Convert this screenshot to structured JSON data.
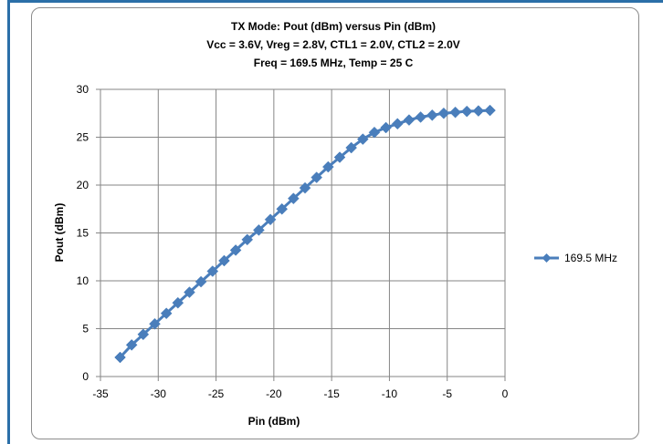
{
  "chart_data": {
    "type": "line",
    "title_lines": [
      "TX Mode:  Pout (dBm) versus Pin (dBm)",
      "Vcc = 3.6V,  Vreg = 2.8V, CTL1 = 2.0V, CTL2 = 2.0V",
      "Freq = 169.5 MHz, Temp = 25 C"
    ],
    "xlabel": "Pin (dBm)",
    "ylabel": "Pout (dBm)",
    "xlim": [
      -35,
      0
    ],
    "ylim": [
      0,
      30
    ],
    "x_ticks": [
      "-35",
      "-30",
      "-25",
      "-20",
      "-15",
      "-10",
      "-5",
      "0"
    ],
    "y_ticks": [
      "0",
      "5",
      "10",
      "15",
      "20",
      "25",
      "30"
    ],
    "grid": true,
    "legend_position": "right",
    "series": [
      {
        "name": "169.5 MHz",
        "color": "#4a7ebb",
        "marker": "diamond",
        "x": [
          -33.3,
          -32.3,
          -31.3,
          -30.3,
          -29.3,
          -28.3,
          -27.3,
          -26.3,
          -25.3,
          -24.3,
          -23.3,
          -22.3,
          -21.3,
          -20.3,
          -19.3,
          -18.3,
          -17.3,
          -16.3,
          -15.3,
          -14.3,
          -13.3,
          -12.3,
          -11.3,
          -10.3,
          -9.3,
          -8.3,
          -7.3,
          -6.3,
          -5.3,
          -4.3,
          -3.3,
          -2.3,
          -1.3
        ],
        "y": [
          2.0,
          3.3,
          4.4,
          5.5,
          6.6,
          7.7,
          8.8,
          9.9,
          11.0,
          12.1,
          13.2,
          14.3,
          15.3,
          16.4,
          17.5,
          18.6,
          19.7,
          20.8,
          21.9,
          22.9,
          23.9,
          24.8,
          25.5,
          26.0,
          26.4,
          26.8,
          27.1,
          27.3,
          27.5,
          27.6,
          27.7,
          27.75,
          27.8
        ]
      }
    ]
  }
}
